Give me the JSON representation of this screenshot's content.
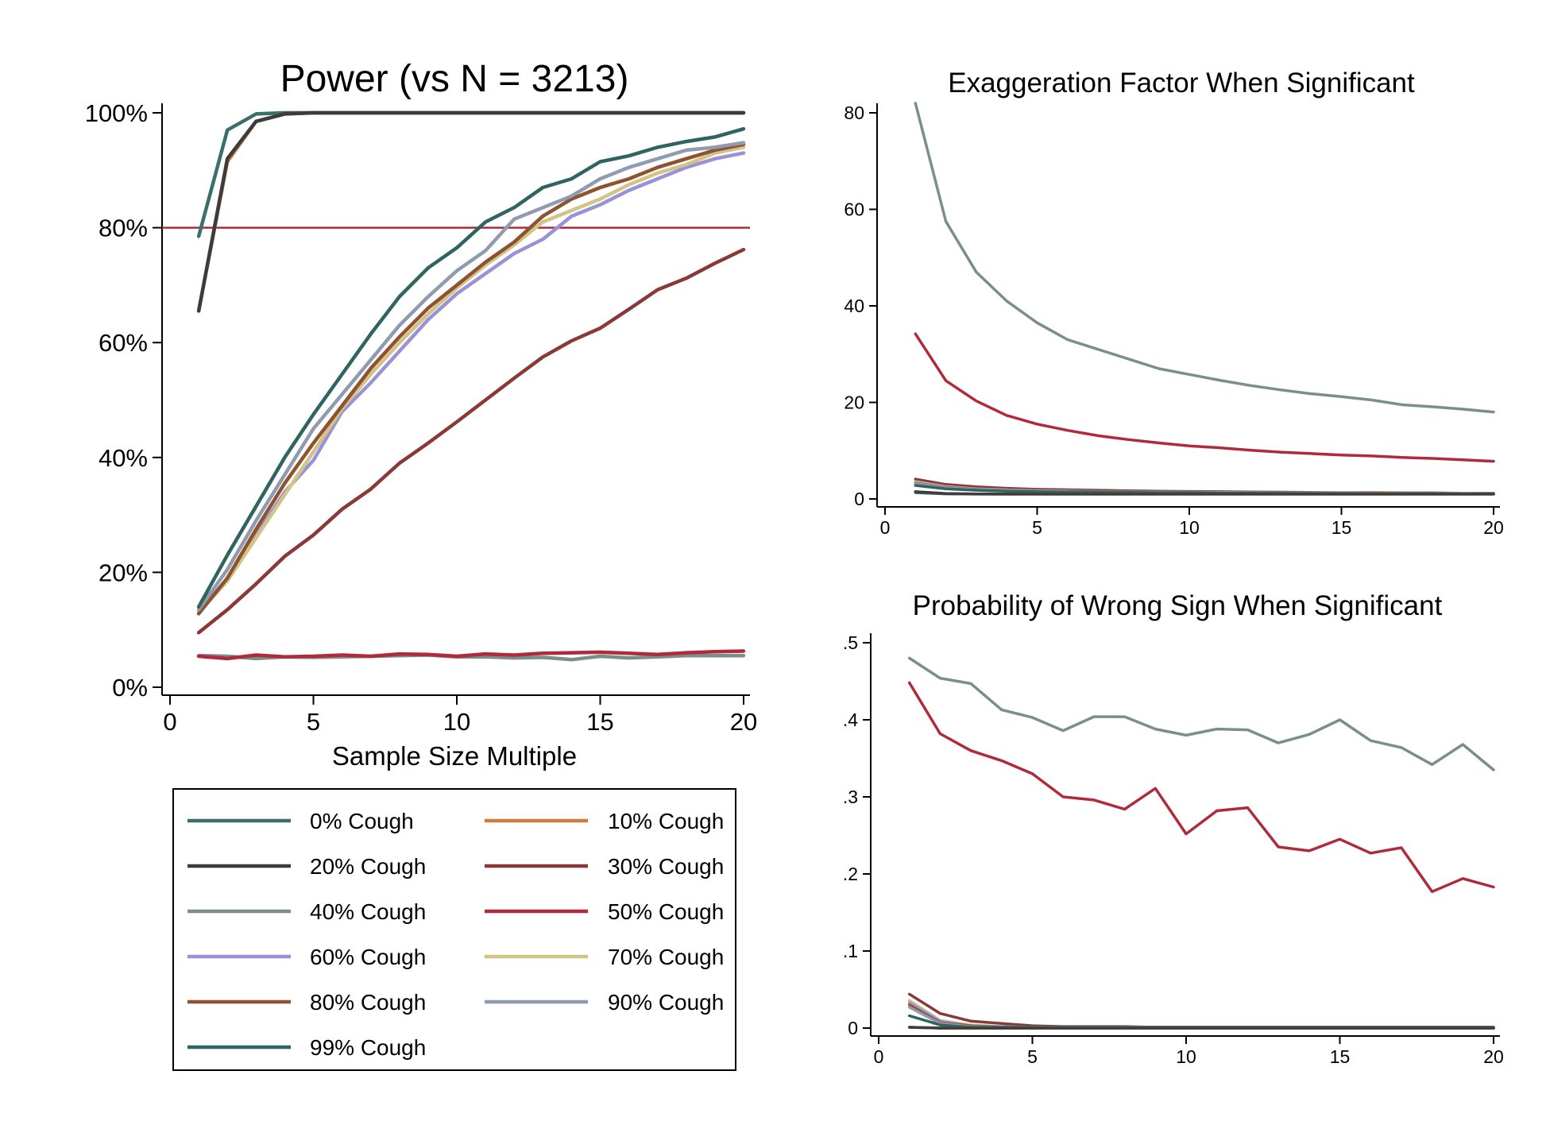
{
  "colors": {
    "0% Cough": "#3a6f6a",
    "10% Cough": "#d47a3c",
    "20% Cough": "#3c3c3c",
    "30% Cough": "#8a3838",
    "40% Cough": "#7a8f88",
    "50% Cough": "#b02a3c",
    "60% Cough": "#9a92d6",
    "70% Cough": "#d2c486",
    "80% Cough": "#8f5230",
    "90% Cough": "#8e9bb0",
    "99% Cough": "#2f6460",
    "refline": "#b02a3c"
  },
  "legend": {
    "entries": [
      "0% Cough",
      "10% Cough",
      "20% Cough",
      "30% Cough",
      "40% Cough",
      "50% Cough",
      "60% Cough",
      "70% Cough",
      "80% Cough",
      "90% Cough",
      "99% Cough"
    ]
  },
  "chart_data": [
    {
      "type": "line",
      "title": "Power (vs N = 3213)",
      "xlabel": "Sample Size Multiple",
      "ylabel": "",
      "xlim": [
        0,
        20
      ],
      "ylim": [
        0,
        1
      ],
      "x_ticks": [
        0,
        5,
        10,
        15,
        20
      ],
      "y_ticks": [
        0,
        0.2,
        0.4,
        0.6,
        0.8,
        1.0
      ],
      "y_tick_labels": [
        "0%",
        "20%",
        "40%",
        "60%",
        "80%",
        "100%"
      ],
      "reference_line_y": 0.8,
      "grid": false,
      "x": [
        1,
        2,
        3,
        4,
        5,
        6,
        7,
        8,
        9,
        10,
        11,
        12,
        13,
        14,
        15,
        16,
        17,
        18,
        19,
        20
      ],
      "series": [
        {
          "name": "0% Cough",
          "values": [
            0.785,
            0.97,
            0.998,
            1,
            1,
            1,
            1,
            1,
            1,
            1,
            1,
            1,
            1,
            1,
            1,
            1,
            1,
            1,
            1,
            1
          ]
        },
        {
          "name": "10% Cough",
          "values": [
            0.655,
            0.915,
            0.985,
            0.998,
            1,
            1,
            1,
            1,
            1,
            1,
            1,
            1,
            1,
            1,
            1,
            1,
            1,
            1,
            1,
            1
          ]
        },
        {
          "name": "20% Cough",
          "values": [
            0.655,
            0.92,
            0.985,
            0.998,
            1,
            1,
            1,
            1,
            1,
            1,
            1,
            1,
            1,
            1,
            1,
            1,
            1,
            1,
            1,
            1
          ]
        },
        {
          "name": "30% Cough",
          "values": [
            0.095,
            0.135,
            0.18,
            0.228,
            0.265,
            0.31,
            0.345,
            0.39,
            0.425,
            0.462,
            0.5,
            0.538,
            0.575,
            0.603,
            0.625,
            0.658,
            0.692,
            0.712,
            0.738,
            0.762
          ]
        },
        {
          "name": "40% Cough",
          "values": [
            0.055,
            0.054,
            0.05,
            0.053,
            0.052,
            0.053,
            0.054,
            0.055,
            0.056,
            0.053,
            0.053,
            0.051,
            0.052,
            0.048,
            0.054,
            0.051,
            0.053,
            0.055,
            0.055,
            0.055
          ]
        },
        {
          "name": "50% Cough",
          "values": [
            0.054,
            0.05,
            0.056,
            0.053,
            0.054,
            0.056,
            0.054,
            0.058,
            0.057,
            0.054,
            0.058,
            0.056,
            0.059,
            0.06,
            0.061,
            0.059,
            0.057,
            0.06,
            0.062,
            0.063
          ]
        },
        {
          "name": "60% Cough",
          "values": [
            0.13,
            0.19,
            0.265,
            0.34,
            0.395,
            0.48,
            0.53,
            0.585,
            0.64,
            0.685,
            0.72,
            0.755,
            0.78,
            0.82,
            0.84,
            0.865,
            0.885,
            0.905,
            0.92,
            0.93
          ]
        },
        {
          "name": "70% Cough",
          "values": [
            0.13,
            0.185,
            0.26,
            0.335,
            0.41,
            0.485,
            0.545,
            0.6,
            0.65,
            0.695,
            0.735,
            0.77,
            0.81,
            0.83,
            0.85,
            0.875,
            0.895,
            0.91,
            0.93,
            0.94
          ]
        },
        {
          "name": "80% Cough",
          "values": [
            0.128,
            0.19,
            0.275,
            0.355,
            0.425,
            0.49,
            0.555,
            0.61,
            0.66,
            0.7,
            0.74,
            0.775,
            0.82,
            0.85,
            0.87,
            0.885,
            0.905,
            0.92,
            0.935,
            0.945
          ]
        },
        {
          "name": "90% Cough",
          "values": [
            0.135,
            0.205,
            0.29,
            0.37,
            0.45,
            0.51,
            0.57,
            0.63,
            0.68,
            0.725,
            0.76,
            0.815,
            0.835,
            0.855,
            0.885,
            0.905,
            0.92,
            0.935,
            0.94,
            0.948
          ]
        },
        {
          "name": "99% Cough",
          "values": [
            0.14,
            0.23,
            0.315,
            0.4,
            0.475,
            0.545,
            0.615,
            0.68,
            0.73,
            0.765,
            0.81,
            0.835,
            0.87,
            0.885,
            0.915,
            0.925,
            0.94,
            0.95,
            0.958,
            0.972
          ]
        }
      ]
    },
    {
      "type": "line",
      "title": "Exaggeration Factor When Significant",
      "xlabel": "",
      "ylabel": "",
      "xlim": [
        0,
        20
      ],
      "ylim": [
        0,
        80
      ],
      "x_ticks": [
        0,
        5,
        10,
        15,
        20
      ],
      "y_ticks": [
        0,
        20,
        40,
        60,
        80
      ],
      "y_tick_labels": [
        "0",
        "20",
        "40",
        "60",
        "80"
      ],
      "grid": false,
      "x": [
        1,
        2,
        3,
        4,
        5,
        6,
        7,
        8,
        9,
        10,
        11,
        12,
        13,
        14,
        15,
        16,
        17,
        18,
        19,
        20
      ],
      "series": [
        {
          "name": "40% Cough",
          "values": [
            82,
            57.5,
            47,
            41,
            36.5,
            33,
            31,
            29,
            27,
            25.8,
            24.6,
            23.5,
            22.6,
            21.8,
            21.2,
            20.5,
            19.5,
            19.1,
            18.6,
            18
          ]
        },
        {
          "name": "50% Cough",
          "values": [
            34.2,
            24.5,
            20.3,
            17.3,
            15.5,
            14.2,
            13.1,
            12.3,
            11.6,
            11,
            10.6,
            10.1,
            9.7,
            9.4,
            9.1,
            8.9,
            8.6,
            8.4,
            8.1,
            7.8
          ]
        },
        {
          "name": "30% Cough",
          "values": [
            4.1,
            3,
            2.5,
            2.2,
            2,
            1.9,
            1.8,
            1.7,
            1.6,
            1.55,
            1.5,
            1.45,
            1.4,
            1.35,
            1.3,
            1.3,
            1.25,
            1.25,
            1.2,
            1.2
          ]
        },
        {
          "name": "60% Cough",
          "values": [
            3.6,
            2.6,
            2.1,
            1.9,
            1.75,
            1.65,
            1.55,
            1.5,
            1.45,
            1.4,
            1.35,
            1.3,
            1.3,
            1.25,
            1.25,
            1.2,
            1.2,
            1.2,
            1.15,
            1.15
          ]
        },
        {
          "name": "70% Cough",
          "values": [
            3.5,
            2.5,
            2.05,
            1.85,
            1.7,
            1.6,
            1.5,
            1.45,
            1.4,
            1.35,
            1.3,
            1.3,
            1.25,
            1.25,
            1.2,
            1.2,
            1.15,
            1.15,
            1.15,
            1.1
          ]
        },
        {
          "name": "80% Cough",
          "values": [
            3.3,
            2.4,
            2,
            1.8,
            1.65,
            1.55,
            1.5,
            1.45,
            1.4,
            1.35,
            1.3,
            1.25,
            1.25,
            1.2,
            1.2,
            1.15,
            1.15,
            1.15,
            1.1,
            1.1
          ]
        },
        {
          "name": "90% Cough",
          "values": [
            3.2,
            2.3,
            1.95,
            1.75,
            1.6,
            1.5,
            1.45,
            1.4,
            1.35,
            1.3,
            1.25,
            1.25,
            1.2,
            1.2,
            1.15,
            1.15,
            1.1,
            1.1,
            1.1,
            1.1
          ]
        },
        {
          "name": "99% Cough",
          "values": [
            2.8,
            2.1,
            1.8,
            1.6,
            1.5,
            1.45,
            1.4,
            1.35,
            1.3,
            1.25,
            1.2,
            1.2,
            1.15,
            1.15,
            1.1,
            1.1,
            1.1,
            1.1,
            1.05,
            1.05
          ]
        },
        {
          "name": "0% Cough",
          "values": [
            1.3,
            1.05,
            1,
            1,
            1,
            1,
            1,
            1,
            1,
            1,
            1,
            1,
            1,
            1,
            1,
            1,
            1,
            1,
            1,
            1
          ]
        },
        {
          "name": "10% Cough",
          "values": [
            1.5,
            1.1,
            1.02,
            1,
            1,
            1,
            1,
            1,
            1,
            1,
            1,
            1,
            1,
            1,
            1,
            1,
            1,
            1,
            1,
            1
          ]
        },
        {
          "name": "20% Cough",
          "values": [
            1.5,
            1.1,
            1.02,
            1,
            1,
            1,
            1,
            1,
            1,
            1,
            1,
            1,
            1,
            1,
            1,
            1,
            1,
            1,
            1,
            1
          ]
        }
      ]
    },
    {
      "type": "line",
      "title": "Probability of Wrong Sign When Significant",
      "xlabel": "",
      "ylabel": "",
      "xlim": [
        0,
        20
      ],
      "ylim": [
        0,
        0.5
      ],
      "x_ticks": [
        0,
        5,
        10,
        15,
        20
      ],
      "y_ticks": [
        0,
        0.1,
        0.2,
        0.3,
        0.4,
        0.5
      ],
      "y_tick_labels": [
        "0",
        ".1",
        ".2",
        ".3",
        ".4",
        ".5"
      ],
      "grid": false,
      "x": [
        1,
        2,
        3,
        4,
        5,
        6,
        7,
        8,
        9,
        10,
        11,
        12,
        13,
        14,
        15,
        16,
        17,
        18,
        19,
        20
      ],
      "series": [
        {
          "name": "40% Cough",
          "values": [
            0.48,
            0.454,
            0.447,
            0.413,
            0.403,
            0.386,
            0.404,
            0.404,
            0.388,
            0.38,
            0.388,
            0.387,
            0.37,
            0.381,
            0.4,
            0.373,
            0.364,
            0.342,
            0.368,
            0.335
          ]
        },
        {
          "name": "50% Cough",
          "values": [
            0.448,
            0.382,
            0.36,
            0.347,
            0.33,
            0.3,
            0.296,
            0.284,
            0.311,
            0.252,
            0.282,
            0.286,
            0.235,
            0.23,
            0.245,
            0.227,
            0.234,
            0.177,
            0.194,
            0.183
          ]
        },
        {
          "name": "30% Cough",
          "values": [
            0.044,
            0.019,
            0.009,
            0.006,
            0.003,
            0.002,
            0.002,
            0.002,
            0.001,
            0.001,
            0.001,
            0.001,
            0.001,
            0.001,
            0.001,
            0.001,
            0.001,
            0.001,
            0.001,
            0.001
          ]
        },
        {
          "name": "70% Cough",
          "values": [
            0.036,
            0.01,
            0.004,
            0.002,
            0.001,
            0.001,
            0.001,
            0.001,
            0.001,
            0.001,
            0.001,
            0.001,
            0.001,
            0.001,
            0.001,
            0.001,
            0.001,
            0.001,
            0.001,
            0.001
          ]
        },
        {
          "name": "60% Cough",
          "values": [
            0.033,
            0.009,
            0.003,
            0.002,
            0.001,
            0.001,
            0.001,
            0.001,
            0.001,
            0.001,
            0.001,
            0.001,
            0.001,
            0.001,
            0.001,
            0.001,
            0.001,
            0.001,
            0.001,
            0.001
          ]
        },
        {
          "name": "80% Cough",
          "values": [
            0.03,
            0.007,
            0.003,
            0.001,
            0.001,
            0.001,
            0.001,
            0.001,
            0.001,
            0.001,
            0.001,
            0.001,
            0.001,
            0.001,
            0.001,
            0.001,
            0.001,
            0.001,
            0.001,
            0.001
          ]
        },
        {
          "name": "90% Cough",
          "values": [
            0.027,
            0.006,
            0.002,
            0.001,
            0.001,
            0.001,
            0.001,
            0.001,
            0.001,
            0.001,
            0.001,
            0.001,
            0.001,
            0.001,
            0.001,
            0.001,
            0.001,
            0.001,
            0.001,
            0.001
          ]
        },
        {
          "name": "99% Cough",
          "values": [
            0.016,
            0.004,
            0.001,
            0.001,
            0.001,
            0.001,
            0.001,
            0.001,
            0.001,
            0.001,
            0.001,
            0.001,
            0.001,
            0.001,
            0.001,
            0.001,
            0.001,
            0.001,
            0.001,
            0.001
          ]
        },
        {
          "name": "0% Cough",
          "values": [
            0.001,
            0,
            0,
            0,
            0,
            0,
            0,
            0,
            0,
            0,
            0,
            0,
            0,
            0,
            0,
            0,
            0,
            0,
            0,
            0
          ]
        },
        {
          "name": "10% Cough",
          "values": [
            0.001,
            0,
            0,
            0,
            0,
            0,
            0,
            0,
            0,
            0,
            0,
            0,
            0,
            0,
            0,
            0,
            0,
            0,
            0,
            0
          ]
        },
        {
          "name": "20% Cough",
          "values": [
            0.001,
            0,
            0,
            0,
            0,
            0,
            0,
            0,
            0,
            0,
            0,
            0,
            0,
            0,
            0,
            0,
            0,
            0,
            0,
            0
          ]
        }
      ]
    }
  ]
}
